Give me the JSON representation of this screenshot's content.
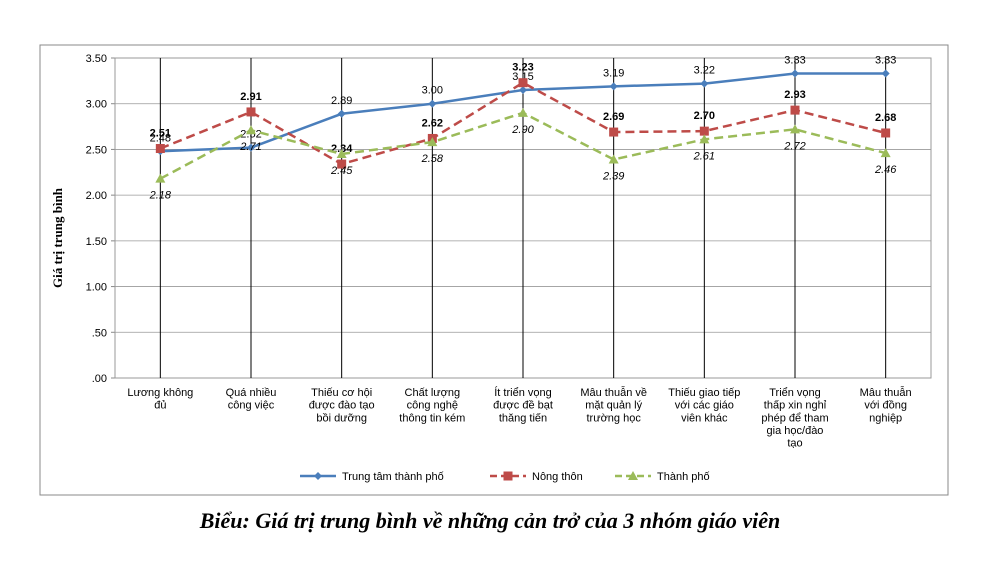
{
  "chart_data": {
    "type": "line",
    "title": "Biểu: Giá trị trung bình về những cản trở của 3 nhóm giáo viên",
    "y_label": "Giá trị trung bình",
    "categories": [
      "Lương không\nđủ",
      "Quá nhiều\ncông việc",
      "Thiếu  cơ hội\nđược đào tạo\nbồi dưỡng",
      "Chất lượng\ncông nghệ\nthông tin kém",
      "Ít triển  vọng\nđược đề bạt\nthăng tiến",
      "Mâu thuẫn  về\nmặt quản lý\ntrường học",
      "Thiếu giao tiếp\nvới các giáo\nviên khác",
      "Triển  vọng\nthấp xin nghỉ\nphép để tham\ngia học/đào\ntạo",
      "Mâu thuẫn\nvới đồng\nnghiệp"
    ],
    "series": [
      {
        "name": "Trung tâm thành phố",
        "color": "#4a7ebb",
        "marker": "diamond",
        "dash": false,
        "values": [
          2.48,
          2.52,
          2.89,
          3.0,
          3.15,
          3.19,
          3.22,
          3.33,
          3.33
        ],
        "value_labels": [
          "2.48",
          "2.52",
          "2.89",
          "3.00",
          "3.15",
          "3.19",
          "3.22",
          "3.33",
          "3.33"
        ]
      },
      {
        "name": "Nông thôn",
        "color": "#be4b48",
        "marker": "square",
        "dash": true,
        "values": [
          2.51,
          2.91,
          2.34,
          2.62,
          3.23,
          2.69,
          2.7,
          2.93,
          2.68
        ],
        "value_labels": [
          "2.51",
          "2.91",
          "2.34",
          "2.62",
          "3.23",
          "2.69",
          "2.70",
          "2.93",
          "2.68"
        ]
      },
      {
        "name": "Thành phố",
        "color": "#9bbb59",
        "marker": "triangle",
        "dash": true,
        "values": [
          2.18,
          2.71,
          2.45,
          2.58,
          2.9,
          2.39,
          2.61,
          2.72,
          2.46
        ],
        "value_labels": [
          "2.18",
          "2.71",
          "2.45",
          "2.58",
          "2.90",
          "2.39",
          "2.61",
          "2.72",
          "2.46"
        ]
      }
    ],
    "ylim": [
      0,
      3.5
    ],
    "yticks": [
      {
        "value": 0,
        "label": ".00"
      },
      {
        "value": 0.5,
        "label": ".50"
      },
      {
        "value": 1,
        "label": "1.00"
      },
      {
        "value": 1.5,
        "label": "1.50"
      },
      {
        "value": 2,
        "label": "2.00"
      },
      {
        "value": 2.5,
        "label": "2.50"
      },
      {
        "value": 3,
        "label": "3.00"
      },
      {
        "value": 3.5,
        "label": "3.50"
      }
    ],
    "grid": true,
    "legend": "bottom"
  }
}
